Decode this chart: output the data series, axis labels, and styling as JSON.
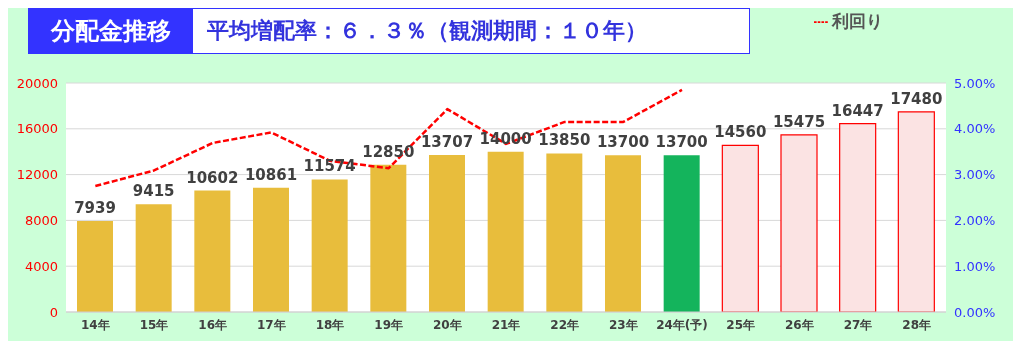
{
  "chart_data": {
    "type": "bar",
    "title": "分配金推移",
    "subtitle": "平均増配率：６．３％（観測期間：１０年）",
    "categories": [
      "14年",
      "15年",
      "16年",
      "17年",
      "18年",
      "19年",
      "20年",
      "21年",
      "22年",
      "23年",
      "24年(予)",
      "25年",
      "26年",
      "27年",
      "28年"
    ],
    "series": [
      {
        "colors": [
          "#e8bd3c",
          "#e8bd3c",
          "#e8bd3c",
          "#e8bd3c",
          "#e8bd3c",
          "#e8bd3c",
          "#e8bd3c",
          "#e8bd3c",
          "#e8bd3c",
          "#e8bd3c",
          "#14b45c",
          "#fbe3e3",
          "#fbe3e3",
          "#fbe3e3",
          "#fbe3e3"
        ],
        "values": [
          7939,
          9415,
          10602,
          10861,
          11574,
          12850,
          13707,
          14000,
          13850,
          13700,
          13700,
          14560,
          15475,
          16447,
          17480
        ],
        "value_labels": [
          "7939",
          "9415",
          "10602",
          "10861",
          "11574",
          "12850",
          "13707",
          "14000",
          "13850",
          "13700",
          "13700",
          "14560",
          "15475",
          "16447",
          "17480"
        ]
      },
      {
        "type": "line",
        "name": "利回り",
        "color": "#ff0000",
        "axis": "y2",
        "line_style": "dashed",
        "marker": "none",
        "values": [
          2.75,
          3.09,
          3.69,
          3.92,
          3.3,
          3.14,
          4.43,
          3.67,
          4.15,
          4.15,
          4.85,
          null,
          null,
          null,
          null
        ]
      }
    ],
    "ylim": [
      0,
      20000
    ],
    "yticks": [
      0,
      4000,
      8000,
      12000,
      16000,
      20000
    ],
    "y2lim": [
      0,
      5
    ],
    "y2ticks": [
      {
        "value": 0,
        "label": "0.00%"
      },
      {
        "value": 1,
        "label": "1.00%"
      },
      {
        "value": 2,
        "label": "2.00%"
      },
      {
        "value": 3,
        "label": "3.00%"
      },
      {
        "value": 4,
        "label": "4.00%"
      },
      {
        "value": 5,
        "label": "5.00%"
      }
    ],
    "grid": "y",
    "legend": "top right"
  }
}
